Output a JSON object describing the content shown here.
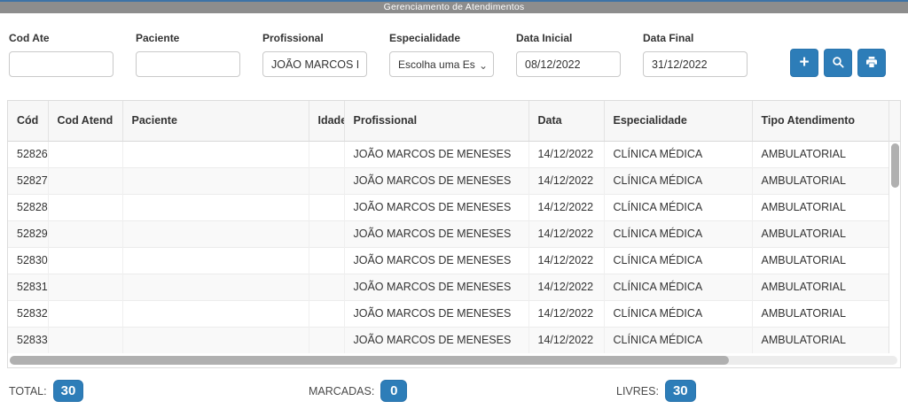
{
  "title_bar": {
    "title": "Gerenciamento de Atendimentos"
  },
  "filters": {
    "cod_ate": {
      "label": "Cod Ate",
      "value": ""
    },
    "paciente": {
      "label": "Paciente",
      "value": ""
    },
    "profissional": {
      "label": "Profissional",
      "value": "JOÃO MARCOS DE MENESES"
    },
    "especialidade": {
      "label": "Especialidade",
      "selected": "Escolha uma Esp"
    },
    "data_inicial": {
      "label": "Data Inicial",
      "value": "08/12/2022"
    },
    "data_final": {
      "label": "Data Final",
      "value": "31/12/2022"
    },
    "buttons": {
      "add_label": "+",
      "add_icon": "plus-icon",
      "search_icon": "search-icon",
      "print_icon": "printer-icon"
    }
  },
  "table": {
    "columns": [
      "Cód",
      "Cod Atend",
      "Paciente",
      "Idade",
      "Profissional",
      "Data",
      "Especialidade",
      "Tipo Atendimento"
    ],
    "row_fields": [
      "cod",
      "cod_atend",
      "paciente",
      "idade",
      "profissional",
      "data",
      "especialidade",
      "tipo_atendimento"
    ],
    "rows": [
      {
        "cod": "52826",
        "cod_atend": "",
        "paciente": "",
        "idade": "",
        "profissional": "JOÃO MARCOS DE MENESES",
        "data": "14/12/2022",
        "especialidade": "CLÍNICA MÉDICA",
        "tipo_atendimento": "AMBULATORIAL"
      },
      {
        "cod": "52827",
        "cod_atend": "",
        "paciente": "",
        "idade": "",
        "profissional": "JOÃO MARCOS DE MENESES",
        "data": "14/12/2022",
        "especialidade": "CLÍNICA MÉDICA",
        "tipo_atendimento": "AMBULATORIAL"
      },
      {
        "cod": "52828",
        "cod_atend": "",
        "paciente": "",
        "idade": "",
        "profissional": "JOÃO MARCOS DE MENESES",
        "data": "14/12/2022",
        "especialidade": "CLÍNICA MÉDICA",
        "tipo_atendimento": "AMBULATORIAL"
      },
      {
        "cod": "52829",
        "cod_atend": "",
        "paciente": "",
        "idade": "",
        "profissional": "JOÃO MARCOS DE MENESES",
        "data": "14/12/2022",
        "especialidade": "CLÍNICA MÉDICA",
        "tipo_atendimento": "AMBULATORIAL"
      },
      {
        "cod": "52830",
        "cod_atend": "",
        "paciente": "",
        "idade": "",
        "profissional": "JOÃO MARCOS DE MENESES",
        "data": "14/12/2022",
        "especialidade": "CLÍNICA MÉDICA",
        "tipo_atendimento": "AMBULATORIAL"
      },
      {
        "cod": "52831",
        "cod_atend": "",
        "paciente": "",
        "idade": "",
        "profissional": "JOÃO MARCOS DE MENESES",
        "data": "14/12/2022",
        "especialidade": "CLÍNICA MÉDICA",
        "tipo_atendimento": "AMBULATORIAL"
      },
      {
        "cod": "52832",
        "cod_atend": "",
        "paciente": "",
        "idade": "",
        "profissional": "JOÃO MARCOS DE MENESES",
        "data": "14/12/2022",
        "especialidade": "CLÍNICA MÉDICA",
        "tipo_atendimento": "AMBULATORIAL"
      },
      {
        "cod": "52833",
        "cod_atend": "",
        "paciente": "",
        "idade": "",
        "profissional": "JOÃO MARCOS DE MENESES",
        "data": "14/12/2022",
        "especialidade": "CLÍNICA MÉDICA",
        "tipo_atendimento": "AMBULATORIAL"
      }
    ]
  },
  "footer": {
    "total": {
      "label": "TOTAL:",
      "value": "30"
    },
    "marcadas": {
      "label": "MARCADAS:",
      "value": "0"
    },
    "livres": {
      "label": "LIVRES:",
      "value": "30"
    }
  },
  "colors": {
    "accent_blue": "#2d7db8",
    "title_bar_gray": "#8d8d8d",
    "title_bar_top_line": "#3e73a6",
    "scrollbar_thumb": "#b0b0b0",
    "row_alt": "#f9f9f9"
  }
}
